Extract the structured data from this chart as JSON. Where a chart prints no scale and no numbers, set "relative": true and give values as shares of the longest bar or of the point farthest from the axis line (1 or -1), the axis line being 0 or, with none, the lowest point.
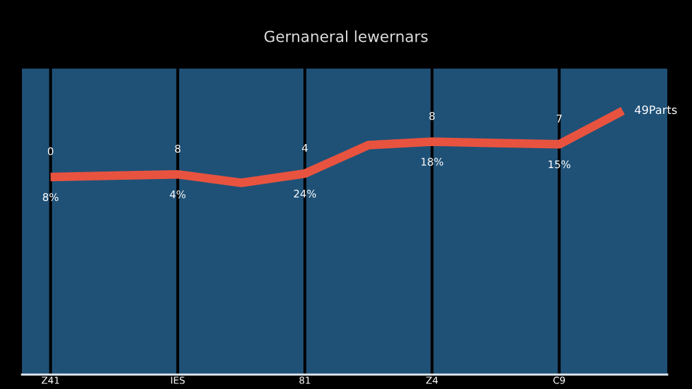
{
  "chart_data": {
    "type": "line",
    "title": "Gernaneral lewernars",
    "relative": true,
    "categories": [
      "Z41",
      null,
      "IES",
      null,
      "81",
      null,
      "Z4",
      null,
      "C9",
      null
    ],
    "series": [
      {
        "name": "49Parts",
        "color": "#e8533f",
        "values": [
          0.749,
          0.754,
          0.759,
          0.727,
          0.762,
          0.87,
          0.883,
          0.878,
          0.873,
          1
        ]
      }
    ],
    "annotations": [
      "0",
      "8",
      "4",
      "8",
      "7",
      "8%",
      "4%",
      "24%",
      "18%",
      "15%"
    ],
    "grid": "x",
    "marker": "none",
    "line_style": "solid",
    "legend": false
  }
}
